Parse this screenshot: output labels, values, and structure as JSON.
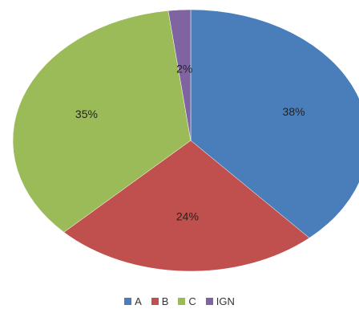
{
  "chart_data": {
    "type": "pie",
    "title": "",
    "labels": [
      "A",
      "B",
      "C",
      "IGN"
    ],
    "values": [
      38,
      24,
      35,
      2
    ],
    "data_labels": [
      "38%",
      "24%",
      "35%",
      "2%"
    ],
    "colors": [
      "#4a7ebb",
      "#c0504d",
      "#9bbb59",
      "#8064a2"
    ],
    "start_direction": "top",
    "clockwise": true,
    "legend": {
      "placement": "bottom",
      "entries": [
        "A",
        "B",
        "C",
        "IGN"
      ]
    }
  }
}
